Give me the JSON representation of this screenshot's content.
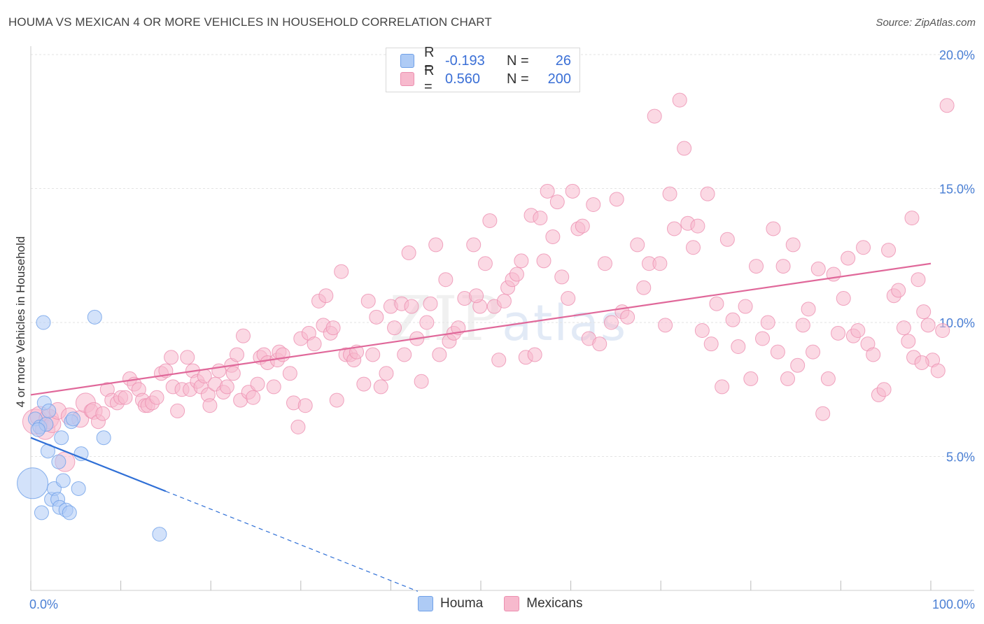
{
  "title": "HOUMA VS MEXICAN 4 OR MORE VEHICLES IN HOUSEHOLD CORRELATION CHART",
  "source": "Source: ZipAtlas.com",
  "watermark": {
    "zip": "ZIP",
    "atlas": "atlas"
  },
  "legend": {
    "rows": [
      {
        "r_label": "R =",
        "r_value": "-0.193",
        "n_label": "N =",
        "n_value": "26",
        "color": "#aecbf5"
      },
      {
        "r_label": "R =",
        "r_value": "0.560",
        "n_label": "N =",
        "n_value": "200",
        "color": "#f7b9cd"
      }
    ]
  },
  "bottom_legend": {
    "houma": "Houma",
    "mexicans": "Mexicans"
  },
  "chart_data": {
    "type": "scatter",
    "title": "HOUMA VS MEXICAN 4 OR MORE VEHICLES IN HOUSEHOLD CORRELATION CHART",
    "xlabel": "",
    "ylabel": "4 or more Vehicles in Household",
    "xlim": [
      0,
      100
    ],
    "ylim": [
      0,
      20
    ],
    "x_tick_labels": [
      "0.0%",
      "100.0%"
    ],
    "y_tick_labels": [
      "5.0%",
      "10.0%",
      "15.0%",
      "20.0%"
    ],
    "y_ticks": [
      5,
      10,
      15,
      20
    ],
    "grid": true,
    "legend_position": "top-center",
    "colors": {
      "houma": "#6fa0e8",
      "houma_fill": "#aecbf5",
      "houma_line": "#2f6fd6",
      "mexicans": "#ec8fb0",
      "mexicans_fill": "#f7b9cd",
      "mexicans_line": "#e0689a",
      "axis_tick_text": "#4a7fd4"
    },
    "series": [
      {
        "name": "Houma",
        "trend": {
          "x0": 0,
          "y0": 5.7,
          "x1": 15,
          "y1": 3.7,
          "dashed_to_x": 43
        },
        "points": [
          [
            0.2,
            4.0,
            22
          ],
          [
            0.5,
            6.4,
            10
          ],
          [
            1.0,
            6.1,
            10
          ],
          [
            1.2,
            2.9,
            10
          ],
          [
            1.4,
            10.0,
            10
          ],
          [
            1.5,
            7.0,
            10
          ],
          [
            1.7,
            6.2,
            10
          ],
          [
            1.9,
            5.2,
            10
          ],
          [
            2.0,
            6.7,
            10
          ],
          [
            2.3,
            3.4,
            10
          ],
          [
            2.6,
            3.8,
            10
          ],
          [
            3.0,
            3.4,
            10
          ],
          [
            3.1,
            4.8,
            10
          ],
          [
            3.2,
            3.1,
            10
          ],
          [
            3.4,
            5.7,
            10
          ],
          [
            3.6,
            4.1,
            10
          ],
          [
            3.9,
            3.0,
            10
          ],
          [
            4.3,
            2.9,
            10
          ],
          [
            4.5,
            6.3,
            10
          ],
          [
            4.7,
            6.4,
            10
          ],
          [
            5.3,
            3.8,
            10
          ],
          [
            5.6,
            5.1,
            10
          ],
          [
            7.1,
            10.2,
            10
          ],
          [
            8.1,
            5.7,
            10
          ],
          [
            14.3,
            2.1,
            10
          ],
          [
            0.8,
            6.0,
            10
          ]
        ]
      },
      {
        "name": "Mexicans",
        "trend": {
          "x0": 0,
          "y0": 7.3,
          "x1": 100,
          "y1": 12.2
        },
        "points": [
          [
            0.5,
            6.3,
            18
          ],
          [
            1.0,
            6.5,
            14
          ],
          [
            1.6,
            6.0,
            14
          ],
          [
            2.0,
            6.4,
            14
          ],
          [
            2.4,
            6.2,
            12
          ],
          [
            3.0,
            6.7,
            12
          ],
          [
            3.8,
            4.8,
            14
          ],
          [
            4.3,
            6.5,
            12
          ],
          [
            5.5,
            6.4,
            12
          ],
          [
            6.1,
            7.0,
            14
          ],
          [
            6.7,
            6.7,
            10
          ],
          [
            7.0,
            6.7,
            12
          ],
          [
            7.5,
            6.3,
            10
          ],
          [
            8.0,
            6.6,
            10
          ],
          [
            8.5,
            7.5,
            10
          ],
          [
            9.0,
            7.1,
            10
          ],
          [
            9.6,
            7.0,
            10
          ],
          [
            10.0,
            7.2,
            10
          ],
          [
            10.5,
            7.2,
            10
          ],
          [
            11.0,
            7.9,
            10
          ],
          [
            11.5,
            7.7,
            10
          ],
          [
            12.0,
            7.5,
            10
          ],
          [
            12.4,
            7.1,
            10
          ],
          [
            12.7,
            6.9,
            10
          ],
          [
            13.0,
            6.9,
            10
          ],
          [
            13.5,
            7.0,
            10
          ],
          [
            14.0,
            7.2,
            10
          ],
          [
            14.5,
            8.1,
            10
          ],
          [
            15.0,
            8.2,
            10
          ],
          [
            15.6,
            8.7,
            10
          ],
          [
            15.8,
            7.6,
            10
          ],
          [
            16.3,
            6.7,
            10
          ],
          [
            16.8,
            7.5,
            10
          ],
          [
            17.4,
            8.7,
            10
          ],
          [
            17.7,
            7.5,
            10
          ],
          [
            18.0,
            8.2,
            10
          ],
          [
            18.5,
            7.8,
            10
          ],
          [
            18.9,
            7.6,
            10
          ],
          [
            19.3,
            8.0,
            10
          ],
          [
            19.7,
            7.3,
            10
          ],
          [
            19.9,
            6.9,
            10
          ],
          [
            20.5,
            7.7,
            10
          ],
          [
            20.9,
            8.2,
            10
          ],
          [
            21.4,
            7.4,
            10
          ],
          [
            21.8,
            7.6,
            10
          ],
          [
            22.3,
            8.4,
            10
          ],
          [
            22.5,
            8.1,
            10
          ],
          [
            22.9,
            8.8,
            10
          ],
          [
            23.3,
            7.1,
            10
          ],
          [
            23.6,
            9.5,
            10
          ],
          [
            24.2,
            7.4,
            10
          ],
          [
            24.7,
            7.2,
            10
          ],
          [
            25.2,
            7.7,
            10
          ],
          [
            25.5,
            8.7,
            10
          ],
          [
            25.9,
            8.8,
            10
          ],
          [
            26.3,
            8.5,
            10
          ],
          [
            27.0,
            7.6,
            10
          ],
          [
            27.4,
            8.6,
            10
          ],
          [
            27.6,
            8.9,
            10
          ],
          [
            28.0,
            8.8,
            10
          ],
          [
            28.8,
            8.1,
            10
          ],
          [
            29.2,
            7.0,
            10
          ],
          [
            29.7,
            6.1,
            10
          ],
          [
            30.0,
            9.4,
            10
          ],
          [
            30.5,
            6.9,
            10
          ],
          [
            30.9,
            9.6,
            10
          ],
          [
            31.5,
            9.2,
            10
          ],
          [
            32.0,
            10.8,
            10
          ],
          [
            32.5,
            9.9,
            10
          ],
          [
            32.8,
            11.0,
            10
          ],
          [
            33.3,
            9.6,
            10
          ],
          [
            33.6,
            9.8,
            10
          ],
          [
            34.0,
            7.1,
            10
          ],
          [
            34.5,
            11.9,
            10
          ],
          [
            35.0,
            8.8,
            10
          ],
          [
            35.5,
            8.8,
            10
          ],
          [
            35.9,
            8.6,
            10
          ],
          [
            36.2,
            8.9,
            10
          ],
          [
            37.0,
            7.7,
            10
          ],
          [
            37.5,
            10.8,
            10
          ],
          [
            38.0,
            8.8,
            10
          ],
          [
            38.4,
            10.2,
            10
          ],
          [
            38.9,
            7.6,
            10
          ],
          [
            39.5,
            8.1,
            10
          ],
          [
            40.0,
            10.6,
            10
          ],
          [
            40.4,
            9.8,
            10
          ],
          [
            41.2,
            10.7,
            10
          ],
          [
            41.5,
            8.8,
            10
          ],
          [
            42.0,
            12.6,
            10
          ],
          [
            42.3,
            10.6,
            10
          ],
          [
            42.9,
            9.4,
            10
          ],
          [
            43.4,
            7.8,
            10
          ],
          [
            44.0,
            10.0,
            10
          ],
          [
            44.4,
            10.7,
            10
          ],
          [
            45.0,
            12.9,
            10
          ],
          [
            45.4,
            8.8,
            10
          ],
          [
            46.1,
            11.6,
            10
          ],
          [
            46.5,
            9.3,
            10
          ],
          [
            47.0,
            9.6,
            10
          ],
          [
            47.5,
            9.8,
            10
          ],
          [
            48.2,
            10.9,
            10
          ],
          [
            49.2,
            12.9,
            10
          ],
          [
            49.9,
            10.6,
            10
          ],
          [
            50.5,
            12.2,
            10
          ],
          [
            51.0,
            13.8,
            10
          ],
          [
            51.5,
            10.6,
            10
          ],
          [
            52.0,
            8.6,
            10
          ],
          [
            52.6,
            10.8,
            10
          ],
          [
            53.0,
            11.3,
            10
          ],
          [
            53.5,
            11.6,
            10
          ],
          [
            54.0,
            11.8,
            10
          ],
          [
            54.5,
            12.3,
            10
          ],
          [
            55.0,
            8.7,
            10
          ],
          [
            55.6,
            14.0,
            10
          ],
          [
            56.0,
            8.8,
            10
          ],
          [
            56.6,
            13.9,
            10
          ],
          [
            57.4,
            14.9,
            10
          ],
          [
            58.0,
            13.2,
            10
          ],
          [
            58.5,
            14.5,
            10
          ],
          [
            59.0,
            11.7,
            10
          ],
          [
            59.7,
            10.9,
            10
          ],
          [
            60.2,
            14.9,
            10
          ],
          [
            60.8,
            13.5,
            10
          ],
          [
            61.3,
            13.6,
            10
          ],
          [
            62.0,
            9.4,
            10
          ],
          [
            62.5,
            14.4,
            10
          ],
          [
            63.2,
            9.2,
            10
          ],
          [
            63.8,
            12.2,
            10
          ],
          [
            64.5,
            10.0,
            10
          ],
          [
            65.1,
            14.6,
            10
          ],
          [
            65.7,
            10.4,
            10
          ],
          [
            66.3,
            10.2,
            10
          ],
          [
            67.4,
            12.9,
            10
          ],
          [
            68.1,
            11.3,
            10
          ],
          [
            68.7,
            12.2,
            10
          ],
          [
            69.3,
            17.7,
            10
          ],
          [
            69.9,
            12.2,
            10
          ],
          [
            70.5,
            9.9,
            10
          ],
          [
            71.0,
            14.8,
            10
          ],
          [
            71.5,
            13.5,
            10
          ],
          [
            72.1,
            18.3,
            10
          ],
          [
            72.6,
            16.5,
            10
          ],
          [
            73.0,
            13.7,
            10
          ],
          [
            73.6,
            12.8,
            10
          ],
          [
            74.1,
            13.6,
            10
          ],
          [
            74.6,
            9.7,
            10
          ],
          [
            75.2,
            14.8,
            10
          ],
          [
            75.6,
            9.2,
            10
          ],
          [
            76.2,
            10.7,
            10
          ],
          [
            76.8,
            7.6,
            10
          ],
          [
            77.4,
            13.1,
            10
          ],
          [
            78.0,
            10.1,
            10
          ],
          [
            78.6,
            9.1,
            10
          ],
          [
            79.4,
            10.6,
            10
          ],
          [
            80.0,
            7.9,
            10
          ],
          [
            80.6,
            12.1,
            10
          ],
          [
            81.3,
            9.4,
            10
          ],
          [
            81.9,
            10.0,
            10
          ],
          [
            82.5,
            13.5,
            10
          ],
          [
            83.0,
            8.9,
            10
          ],
          [
            83.6,
            12.1,
            10
          ],
          [
            84.1,
            7.9,
            10
          ],
          [
            84.7,
            12.9,
            10
          ],
          [
            85.2,
            8.4,
            10
          ],
          [
            85.8,
            9.9,
            10
          ],
          [
            86.4,
            10.5,
            10
          ],
          [
            86.9,
            8.9,
            10
          ],
          [
            87.5,
            12.0,
            10
          ],
          [
            88.0,
            6.6,
            10
          ],
          [
            88.6,
            7.9,
            10
          ],
          [
            89.2,
            11.8,
            10
          ],
          [
            89.7,
            9.6,
            10
          ],
          [
            90.3,
            10.9,
            10
          ],
          [
            90.8,
            12.4,
            10
          ],
          [
            91.4,
            9.5,
            10
          ],
          [
            91.9,
            9.7,
            10
          ],
          [
            92.5,
            12.8,
            10
          ],
          [
            93.0,
            9.2,
            10
          ],
          [
            93.6,
            8.8,
            10
          ],
          [
            94.2,
            7.3,
            10
          ],
          [
            94.8,
            7.5,
            10
          ],
          [
            95.3,
            12.7,
            10
          ],
          [
            95.9,
            11.0,
            10
          ],
          [
            96.4,
            11.2,
            10
          ],
          [
            97.0,
            9.8,
            10
          ],
          [
            97.5,
            9.3,
            10
          ],
          [
            98.1,
            8.7,
            10
          ],
          [
            98.6,
            11.6,
            10
          ],
          [
            99.2,
            10.4,
            10
          ],
          [
            99.7,
            9.9,
            10
          ],
          [
            100.2,
            8.6,
            10
          ],
          [
            100.8,
            8.2,
            10
          ],
          [
            101.3,
            9.7,
            10
          ],
          [
            101.8,
            18.1,
            10
          ],
          [
            99.0,
            8.5,
            10
          ],
          [
            97.9,
            13.9,
            10
          ],
          [
            57.0,
            12.3,
            10
          ],
          [
            49.5,
            11.0,
            10
          ]
        ]
      }
    ]
  }
}
